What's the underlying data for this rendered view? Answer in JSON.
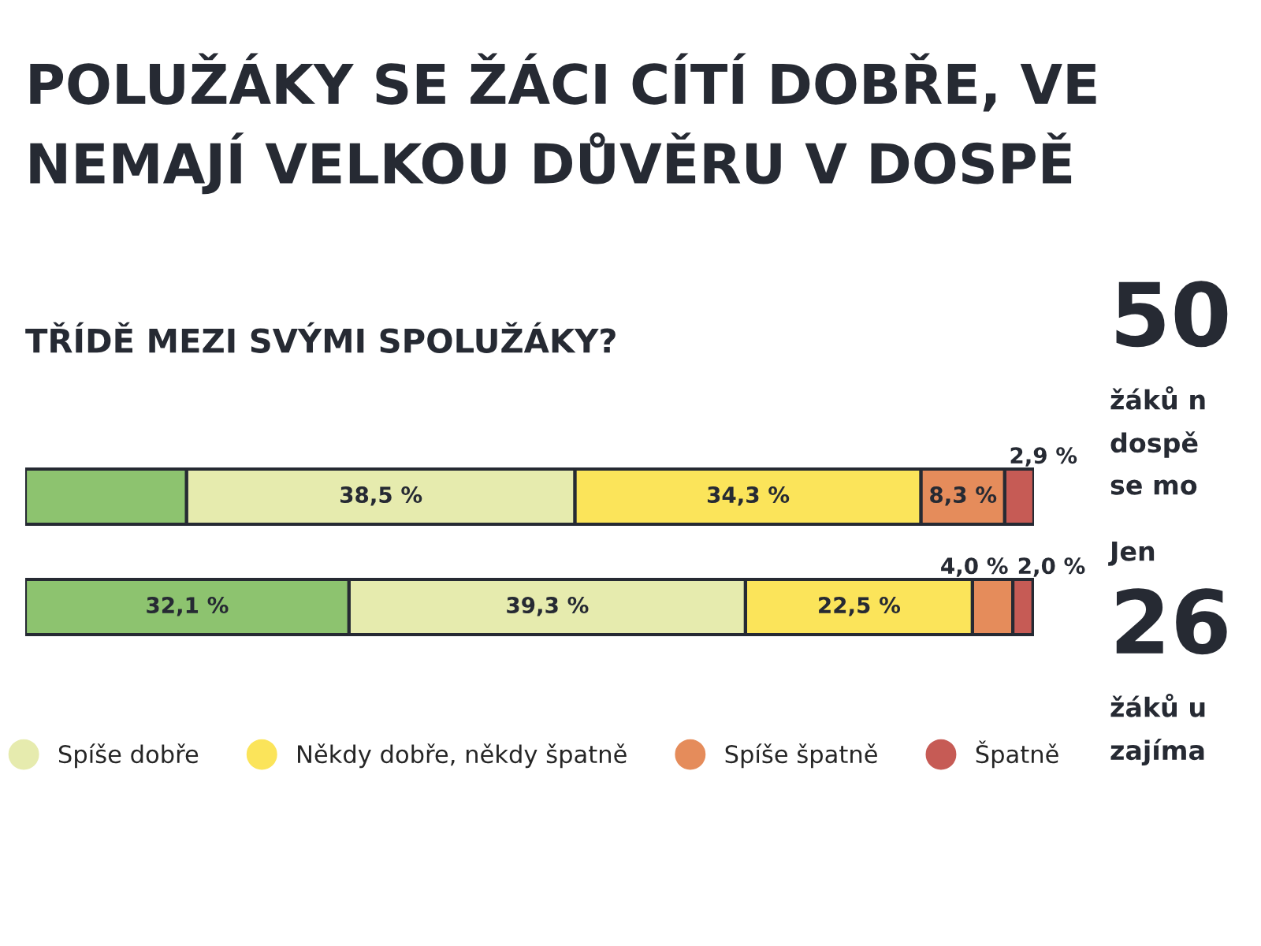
{
  "chart_data": {
    "type": "bar",
    "orientation": "horizontal",
    "stacked": true,
    "title": "POLUŽÁKY SE ŽÁCI CÍTÍ DOBŘE, VE\nNEMAJÍ VELKOU DŮVĚRU V DOSPĚ",
    "subtitle": "TŘÍDĚ MEZI SVÝMI SPOLUŽÁKY?",
    "categories": [
      null,
      null
    ],
    "series": [
      {
        "color": "#8dc36f",
        "values": [
          16.0,
          32.1
        ],
        "value_labels": [
          null,
          "32,1 %"
        ]
      },
      {
        "name": "Spíše dobře",
        "color": "#e6ebae",
        "values": [
          38.5,
          39.3
        ],
        "value_labels": [
          "38,5 %",
          "39,3 %"
        ]
      },
      {
        "name": "Někdy dobře, někdy špatně",
        "color": "#fbe45a",
        "values": [
          34.3,
          22.5
        ],
        "value_labels": [
          "34,3 %",
          "22,5 %"
        ]
      },
      {
        "name": "Spíše špatně",
        "color": "#e58c5b",
        "values": [
          8.3,
          4.0
        ],
        "value_labels": [
          "8,3 %",
          "4,0 %"
        ]
      },
      {
        "name": "Špatně",
        "color": "#c65b55",
        "values": [
          2.9,
          2.0
        ],
        "value_labels": [
          "2,9 %",
          "2,0 %"
        ]
      }
    ],
    "legend": "bottom",
    "annotations": [
      "50",
      "žáků n",
      "dospě",
      "se mo",
      "Jen",
      "26",
      "žáků u",
      "zajíma"
    ]
  }
}
